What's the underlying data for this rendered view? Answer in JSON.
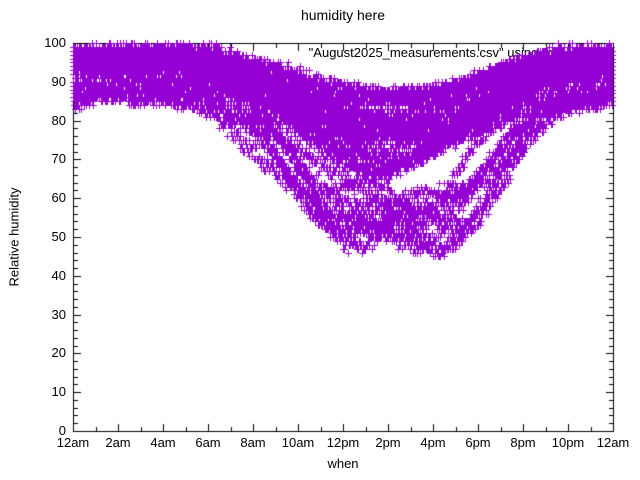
{
  "chart_data": {
    "type": "scatter",
    "title": "humidity here",
    "xlabel": "when",
    "ylabel": "Relative humidity",
    "legend_label": "\"August2025_measurements.csv\" using 2:5",
    "marker": "plus",
    "marker_color": "#9400D3",
    "axis_color": "#000000",
    "background": "#FFFFFF",
    "xlim_hours": [
      0,
      24
    ],
    "ylim": [
      0,
      100
    ],
    "x_tick_labels": [
      "12am",
      "2am",
      "4am",
      "6am",
      "8am",
      "10am",
      "12pm",
      "2pm",
      "4pm",
      "6pm",
      "8pm",
      "10pm",
      "12am"
    ],
    "x_major_tick_hours": [
      0,
      2,
      4,
      6,
      8,
      10,
      12,
      14,
      16,
      18,
      20,
      22,
      24
    ],
    "x_minor_tick_step_hours": 1,
    "y_major_ticks": [
      0,
      10,
      20,
      30,
      40,
      50,
      60,
      70,
      80,
      90,
      100
    ],
    "y_minor_tick_step": 2,
    "upper_bound": 100,
    "lower_envelope_by_hour": [
      86,
      87,
      87,
      87,
      87,
      87,
      86,
      81,
      76,
      70,
      63,
      56,
      51,
      48,
      47,
      49,
      51,
      56,
      62,
      69,
      77,
      82,
      85,
      86,
      87
    ]
  }
}
